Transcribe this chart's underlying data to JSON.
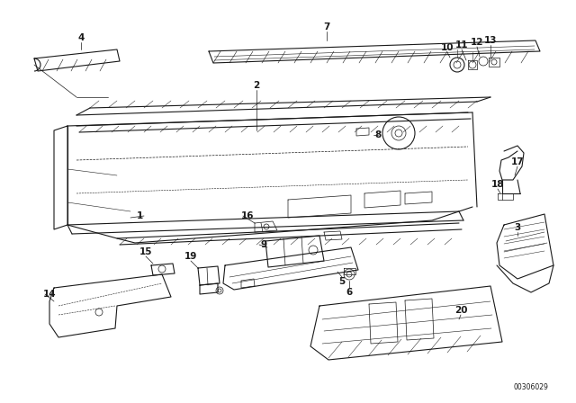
{
  "bg_color": "#ffffff",
  "line_color": "#1a1a1a",
  "fig_width": 6.4,
  "fig_height": 4.48,
  "dpi": 100,
  "watermark": "00306029"
}
